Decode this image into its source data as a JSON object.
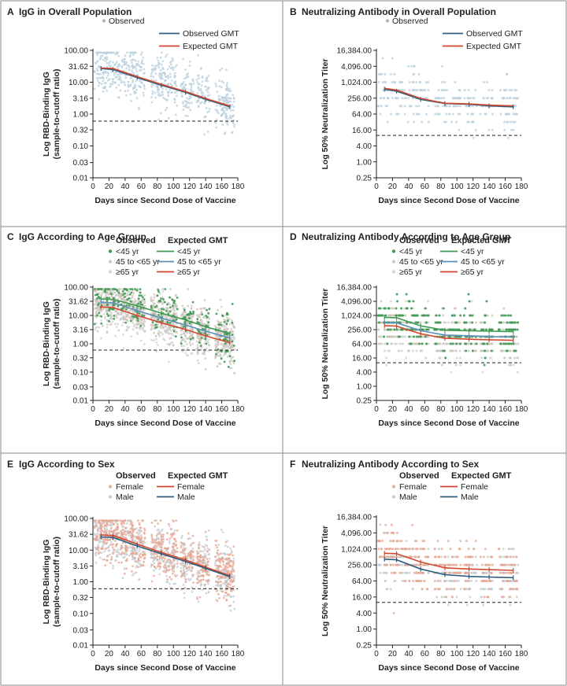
{
  "figure": {
    "panels": [
      {
        "letter": "A",
        "title": "IgG in Overall Population"
      },
      {
        "letter": "B",
        "title": "Neutralizing Antibody in Overall Population"
      },
      {
        "letter": "C",
        "title": "IgG According to Age Group"
      },
      {
        "letter": "D",
        "title": "Neutralizing Antibody According to Age Group"
      },
      {
        "letter": "E",
        "title": "IgG According to Sex"
      },
      {
        "letter": "F",
        "title": "Neutralizing Antibody According to Sex"
      }
    ]
  },
  "colors": {
    "observed_grey": "#aeb8c2",
    "observed_blue": "#b9cfdc",
    "observed_gmt": "#2f5b7c",
    "expected_gmt": "#d0492e",
    "age_lt45": "#3f9a54",
    "age_45_65": "#5c8fb8",
    "age_ge65": "#d0492e",
    "sex_female": "#e0876c",
    "sex_male": "#2f5b7c",
    "border": "#888888"
  },
  "chart_data": [
    {
      "id": "A",
      "type": "scatter",
      "title": "IgG in Overall Population",
      "xlabel": "Days since Second Dose of Vaccine",
      "ylabel": [
        "Log RBD-Binding IgG",
        "(sample-to-cutoff ratio)"
      ],
      "xlim": [
        0,
        180
      ],
      "x_ticks": [
        0,
        20,
        40,
        60,
        80,
        100,
        120,
        140,
        160,
        180
      ],
      "ylim": [
        0.01,
        100
      ],
      "y_ticks": [
        100,
        31.62,
        10,
        3.16,
        1,
        0.32,
        0.1,
        0.03,
        0.01
      ],
      "y_tick_labels": [
        "100.00",
        "31.62",
        "10.00",
        "3.16",
        "1.00",
        "0.32",
        "0.10",
        "0.03",
        "0.01"
      ],
      "threshold": 0.6,
      "legend": {
        "layout": "single",
        "items": [
          {
            "kind": "dot",
            "label": "Observed",
            "color": "#aeb8c2"
          },
          {
            "kind": "line",
            "label": "Observed GMT",
            "color": "#2f5b7c"
          },
          {
            "kind": "line",
            "label": "Expected GMT",
            "color": "#d0492e"
          }
        ]
      },
      "scatter_groups": [
        {
          "name": "Observed",
          "color": "#b9cfdc",
          "center": [
            30,
            29,
            24,
            17,
            11,
            7.6,
            5.2,
            3.6,
            2.4,
            1.5
          ]
        }
      ],
      "series": [
        {
          "name": "Observed GMT",
          "color": "#2f5b7c",
          "x": [
            10,
            25,
            55,
            85,
            115,
            140,
            170
          ],
          "y": [
            27,
            25,
            14,
            8,
            4.8,
            2.9,
            1.7
          ],
          "markers": true
        },
        {
          "name": "Expected GMT",
          "color": "#d0492e",
          "x": [
            10,
            25,
            55,
            85,
            115,
            140,
            170
          ],
          "y": [
            28,
            27,
            15,
            8.6,
            5.1,
            3.1,
            1.8
          ],
          "markers": false
        }
      ]
    },
    {
      "id": "B",
      "type": "scatter",
      "title": "Neutralizing Antibody in Overall Population",
      "xlabel": "Days since Second Dose of Vaccine",
      "ylabel": [
        "Log 50% Neutralization Titer"
      ],
      "xlim": [
        0,
        180
      ],
      "x_ticks": [
        0,
        20,
        40,
        60,
        80,
        100,
        120,
        140,
        160,
        180
      ],
      "ylim": [
        0.25,
        16384
      ],
      "y_ticks": [
        16384,
        4096,
        1024,
        256,
        64,
        16,
        4,
        1,
        0.25
      ],
      "y_tick_labels": [
        "16,384.00",
        "4,096.00",
        "1,024.00",
        "256.00",
        "64.00",
        "16.00",
        "4.00",
        "1.00",
        "0.25"
      ],
      "threshold": 10,
      "legend": {
        "layout": "single",
        "items": [
          {
            "kind": "dot",
            "label": "Observed",
            "color": "#aeb8c2"
          },
          {
            "kind": "line",
            "label": "Observed GMT",
            "color": "#2f5b7c"
          },
          {
            "kind": "line",
            "label": "Expected GMT",
            "color": "#d0492e"
          }
        ]
      },
      "scatter_groups": [
        {
          "name": "Observed",
          "color": "#b9cfdc",
          "center": [
            480,
            420,
            360,
            260,
            190,
            150,
            140,
            135,
            130,
            125
          ]
        }
      ],
      "series": [
        {
          "name": "Observed GMT",
          "color": "#2f5b7c",
          "x": [
            10,
            25,
            55,
            85,
            115,
            140,
            170
          ],
          "y": [
            560,
            470,
            230,
            160,
            150,
            130,
            120
          ],
          "markers": true
        },
        {
          "name": "Expected GMT",
          "color": "#d0492e",
          "x": [
            10,
            25,
            55,
            85,
            115,
            140,
            170
          ],
          "y": [
            600,
            520,
            250,
            165,
            155,
            140,
            130
          ],
          "markers": false
        }
      ]
    },
    {
      "id": "C",
      "type": "scatter",
      "title": "IgG According to Age Group",
      "xlabel": "Days since Second Dose of Vaccine",
      "ylabel": [
        "Log RBD-Binding IgG",
        "(sample-to-cutoff ratio)"
      ],
      "xlim": [
        0,
        180
      ],
      "x_ticks": [
        0,
        20,
        40,
        60,
        80,
        100,
        120,
        140,
        160,
        180
      ],
      "ylim": [
        0.01,
        100
      ],
      "y_ticks": [
        100,
        31.62,
        10,
        3.16,
        1,
        0.32,
        0.1,
        0.03,
        0.01
      ],
      "y_tick_labels": [
        "100.00",
        "31.62",
        "10.00",
        "3.16",
        "1.00",
        "0.32",
        "0.10",
        "0.03",
        "0.01"
      ],
      "threshold": 0.6,
      "legend": {
        "layout": "double",
        "head_observed": "Observed",
        "head_expected": "Expected GMT",
        "rows": [
          {
            "label": "<45 yr",
            "dot": "#3f9a54",
            "line": "#3f9a54"
          },
          {
            "label": "45 to <65 yr",
            "dot": "#c8cdd2",
            "line": "#5c8fb8"
          },
          {
            "label": "≥65 yr",
            "dot": "#d5d5d5",
            "line": "#d0492e"
          }
        ]
      },
      "scatter_groups": [
        {
          "name": "≥65 yr",
          "color": "#cfcfcf",
          "center": [
            22,
            20,
            16,
            11,
            7,
            4.8,
            3.2,
            2.1,
            1.4,
            0.9
          ]
        },
        {
          "name": "45 to <65 yr",
          "color": "#c9c2b6",
          "center": [
            30,
            28,
            23,
            15,
            10,
            6.8,
            4.6,
            3.1,
            2,
            1.3
          ]
        },
        {
          "name": "<45 yr",
          "color": "#3f9a54",
          "center": [
            40,
            38,
            30,
            21,
            14,
            9.5,
            6.5,
            4.4,
            3,
            2
          ],
          "sparse": true
        }
      ],
      "series": [
        {
          "name": "<45 yr",
          "color": "#3f9a54",
          "x": [
            10,
            25,
            55,
            85,
            115,
            140,
            170
          ],
          "y": [
            38,
            37,
            22,
            12,
            7,
            4,
            2.3
          ],
          "markers": true
        },
        {
          "name": "45 to <65 yr",
          "color": "#5c8fb8",
          "x": [
            10,
            25,
            55,
            85,
            115,
            140,
            170
          ],
          "y": [
            29,
            28,
            15,
            8,
            4.6,
            2.8,
            1.6
          ],
          "markers": true
        },
        {
          "name": "≥65 yr",
          "color": "#d0492e",
          "x": [
            10,
            25,
            55,
            85,
            115,
            140,
            170
          ],
          "y": [
            20,
            19,
            10,
            5.5,
            3.2,
            1.9,
            1.1
          ],
          "markers": true
        }
      ]
    },
    {
      "id": "D",
      "type": "scatter",
      "title": "Neutralizing Antibody According to Age Group",
      "xlabel": "Days since Second Dose of Vaccine",
      "ylabel": [
        "Log 50% Neutralization Titer"
      ],
      "xlim": [
        0,
        180
      ],
      "x_ticks": [
        0,
        20,
        40,
        60,
        80,
        100,
        120,
        140,
        160,
        180
      ],
      "ylim": [
        0.25,
        16384
      ],
      "y_ticks": [
        16384,
        4096,
        1024,
        256,
        64,
        16,
        4,
        1,
        0.25
      ],
      "y_tick_labels": [
        "16,384.00",
        "4,096.00",
        "1,024.00",
        "256.00",
        "64.00",
        "16.00",
        "4.00",
        "1.00",
        "0.25"
      ],
      "threshold": 10,
      "legend": {
        "layout": "double",
        "head_observed": "Observed",
        "head_expected": "Expected GMT",
        "rows": [
          {
            "label": "<45 yr",
            "dot": "#3f9a54",
            "line": "#3f9a54"
          },
          {
            "label": "45 to <65 yr",
            "dot": "#c8cdd2",
            "line": "#5c8fb8"
          },
          {
            "label": "≥65 yr",
            "dot": "#d5d5d5",
            "line": "#d0492e"
          }
        ]
      },
      "scatter_groups": [
        {
          "name": "≥65 yr",
          "color": "#cfcfcf",
          "center": [
            300,
            280,
            220,
            160,
            120,
            100,
            95,
            90,
            85,
            80
          ]
        },
        {
          "name": "45 to <65 yr",
          "color": "#c9c2b6",
          "center": [
            420,
            400,
            300,
            200,
            150,
            130,
            125,
            120,
            115,
            110
          ]
        },
        {
          "name": "<45 yr",
          "color": "#3f9a54",
          "center": [
            800,
            780,
            560,
            360,
            260,
            230,
            220,
            210,
            205,
            200
          ],
          "sparse": true
        }
      ],
      "series": [
        {
          "name": "<45 yr",
          "color": "#3f9a54",
          "x": [
            10,
            25,
            55,
            85,
            115,
            140,
            170
          ],
          "y": [
            850,
            820,
            370,
            240,
            230,
            220,
            210
          ],
          "markers": true
        },
        {
          "name": "45 to <65 yr",
          "color": "#5c8fb8",
          "x": [
            10,
            25,
            55,
            85,
            115,
            140,
            170
          ],
          "y": [
            520,
            500,
            230,
            150,
            140,
            130,
            125
          ],
          "markers": true
        },
        {
          "name": "≥65 yr",
          "color": "#d0492e",
          "x": [
            10,
            25,
            55,
            85,
            115,
            140,
            170
          ],
          "y": [
            380,
            360,
            170,
            110,
            100,
            95,
            90
          ],
          "markers": true
        }
      ]
    },
    {
      "id": "E",
      "type": "scatter",
      "title": "IgG According to Sex",
      "xlabel": "Days since Second Dose of Vaccine",
      "ylabel": [
        "Log RBD-Binding IgG",
        "(sample-to-cutoff ratio)"
      ],
      "xlim": [
        0,
        180
      ],
      "x_ticks": [
        0,
        20,
        40,
        60,
        80,
        100,
        120,
        140,
        160,
        180
      ],
      "ylim": [
        0.01,
        100
      ],
      "y_ticks": [
        100,
        31.62,
        10,
        3.16,
        1,
        0.32,
        0.1,
        0.03,
        0.01
      ],
      "y_tick_labels": [
        "100.00",
        "31.62",
        "10.00",
        "3.16",
        "1.00",
        "0.32",
        "0.10",
        "0.03",
        "0.01"
      ],
      "threshold": 0.6,
      "legend": {
        "layout": "double",
        "head_observed": "Observed",
        "head_expected": "Expected GMT",
        "rows": [
          {
            "label": "Female",
            "dot": "#eab09e",
            "line": "#d0492e"
          },
          {
            "label": "Male",
            "dot": "#c8cdd2",
            "line": "#2f5b7c"
          }
        ]
      },
      "scatter_groups": [
        {
          "name": "Male",
          "color": "#c3cbd3",
          "center": [
            28,
            26,
            21,
            14,
            9.5,
            6.5,
            4.4,
            3,
            2,
            1.3
          ]
        },
        {
          "name": "Female",
          "color": "#e8a48d",
          "center": [
            32,
            30,
            25,
            17,
            11,
            7.5,
            5,
            3.4,
            2.3,
            1.5
          ]
        }
      ],
      "series": [
        {
          "name": "Female",
          "color": "#d0492e",
          "x": [
            10,
            25,
            55,
            85,
            115,
            140,
            170
          ],
          "y": [
            30,
            29,
            15.5,
            8.4,
            4.9,
            2.9,
            1.55
          ],
          "markers": true
        },
        {
          "name": "Male",
          "color": "#2f5b7c",
          "x": [
            10,
            25,
            55,
            85,
            115,
            140,
            170
          ],
          "y": [
            26,
            25,
            13.5,
            7.6,
            4.4,
            2.65,
            1.45
          ],
          "markers": true
        }
      ]
    },
    {
      "id": "F",
      "type": "scatter",
      "title": "Neutralizing Antibody According to Sex",
      "xlabel": "Days since Second Dose of Vaccine",
      "ylabel": [
        "Log 50% Neutralization Titer"
      ],
      "xlim": [
        0,
        180
      ],
      "x_ticks": [
        0,
        20,
        40,
        60,
        80,
        100,
        120,
        140,
        160,
        180
      ],
      "ylim": [
        0.25,
        16384
      ],
      "y_ticks": [
        16384,
        4096,
        1024,
        256,
        64,
        16,
        4,
        1,
        0.25
      ],
      "y_tick_labels": [
        "16,384.00",
        "4,096.00",
        "1,024.00",
        "256.00",
        "64.00",
        "16.00",
        "4.00",
        "1.00",
        "0.25"
      ],
      "threshold": 10,
      "legend": {
        "layout": "double",
        "head_observed": "Observed",
        "head_expected": "Expected GMT",
        "rows": [
          {
            "label": "Female",
            "dot": "#eab09e",
            "line": "#d0492e"
          },
          {
            "label": "Male",
            "dot": "#c8cdd2",
            "line": "#2f5b7c"
          }
        ]
      },
      "scatter_groups": [
        {
          "name": "Male",
          "color": "#c3cbd3",
          "center": [
            380,
            360,
            280,
            190,
            130,
            105,
            100,
            95,
            92,
            90
          ]
        },
        {
          "name": "Female",
          "color": "#e8a48d",
          "center": [
            640,
            620,
            470,
            320,
            230,
            190,
            180,
            175,
            170,
            165
          ]
        }
      ],
      "series": [
        {
          "name": "Female",
          "color": "#d0492e",
          "x": [
            10,
            25,
            55,
            85,
            115,
            140,
            170
          ],
          "y": [
            700,
            680,
            330,
            200,
            180,
            170,
            160
          ],
          "markers": true
        },
        {
          "name": "Male",
          "color": "#2f5b7c",
          "x": [
            10,
            25,
            55,
            85,
            115,
            140,
            170
          ],
          "y": [
            420,
            400,
            180,
            110,
            95,
            90,
            85
          ],
          "markers": true
        }
      ]
    }
  ]
}
